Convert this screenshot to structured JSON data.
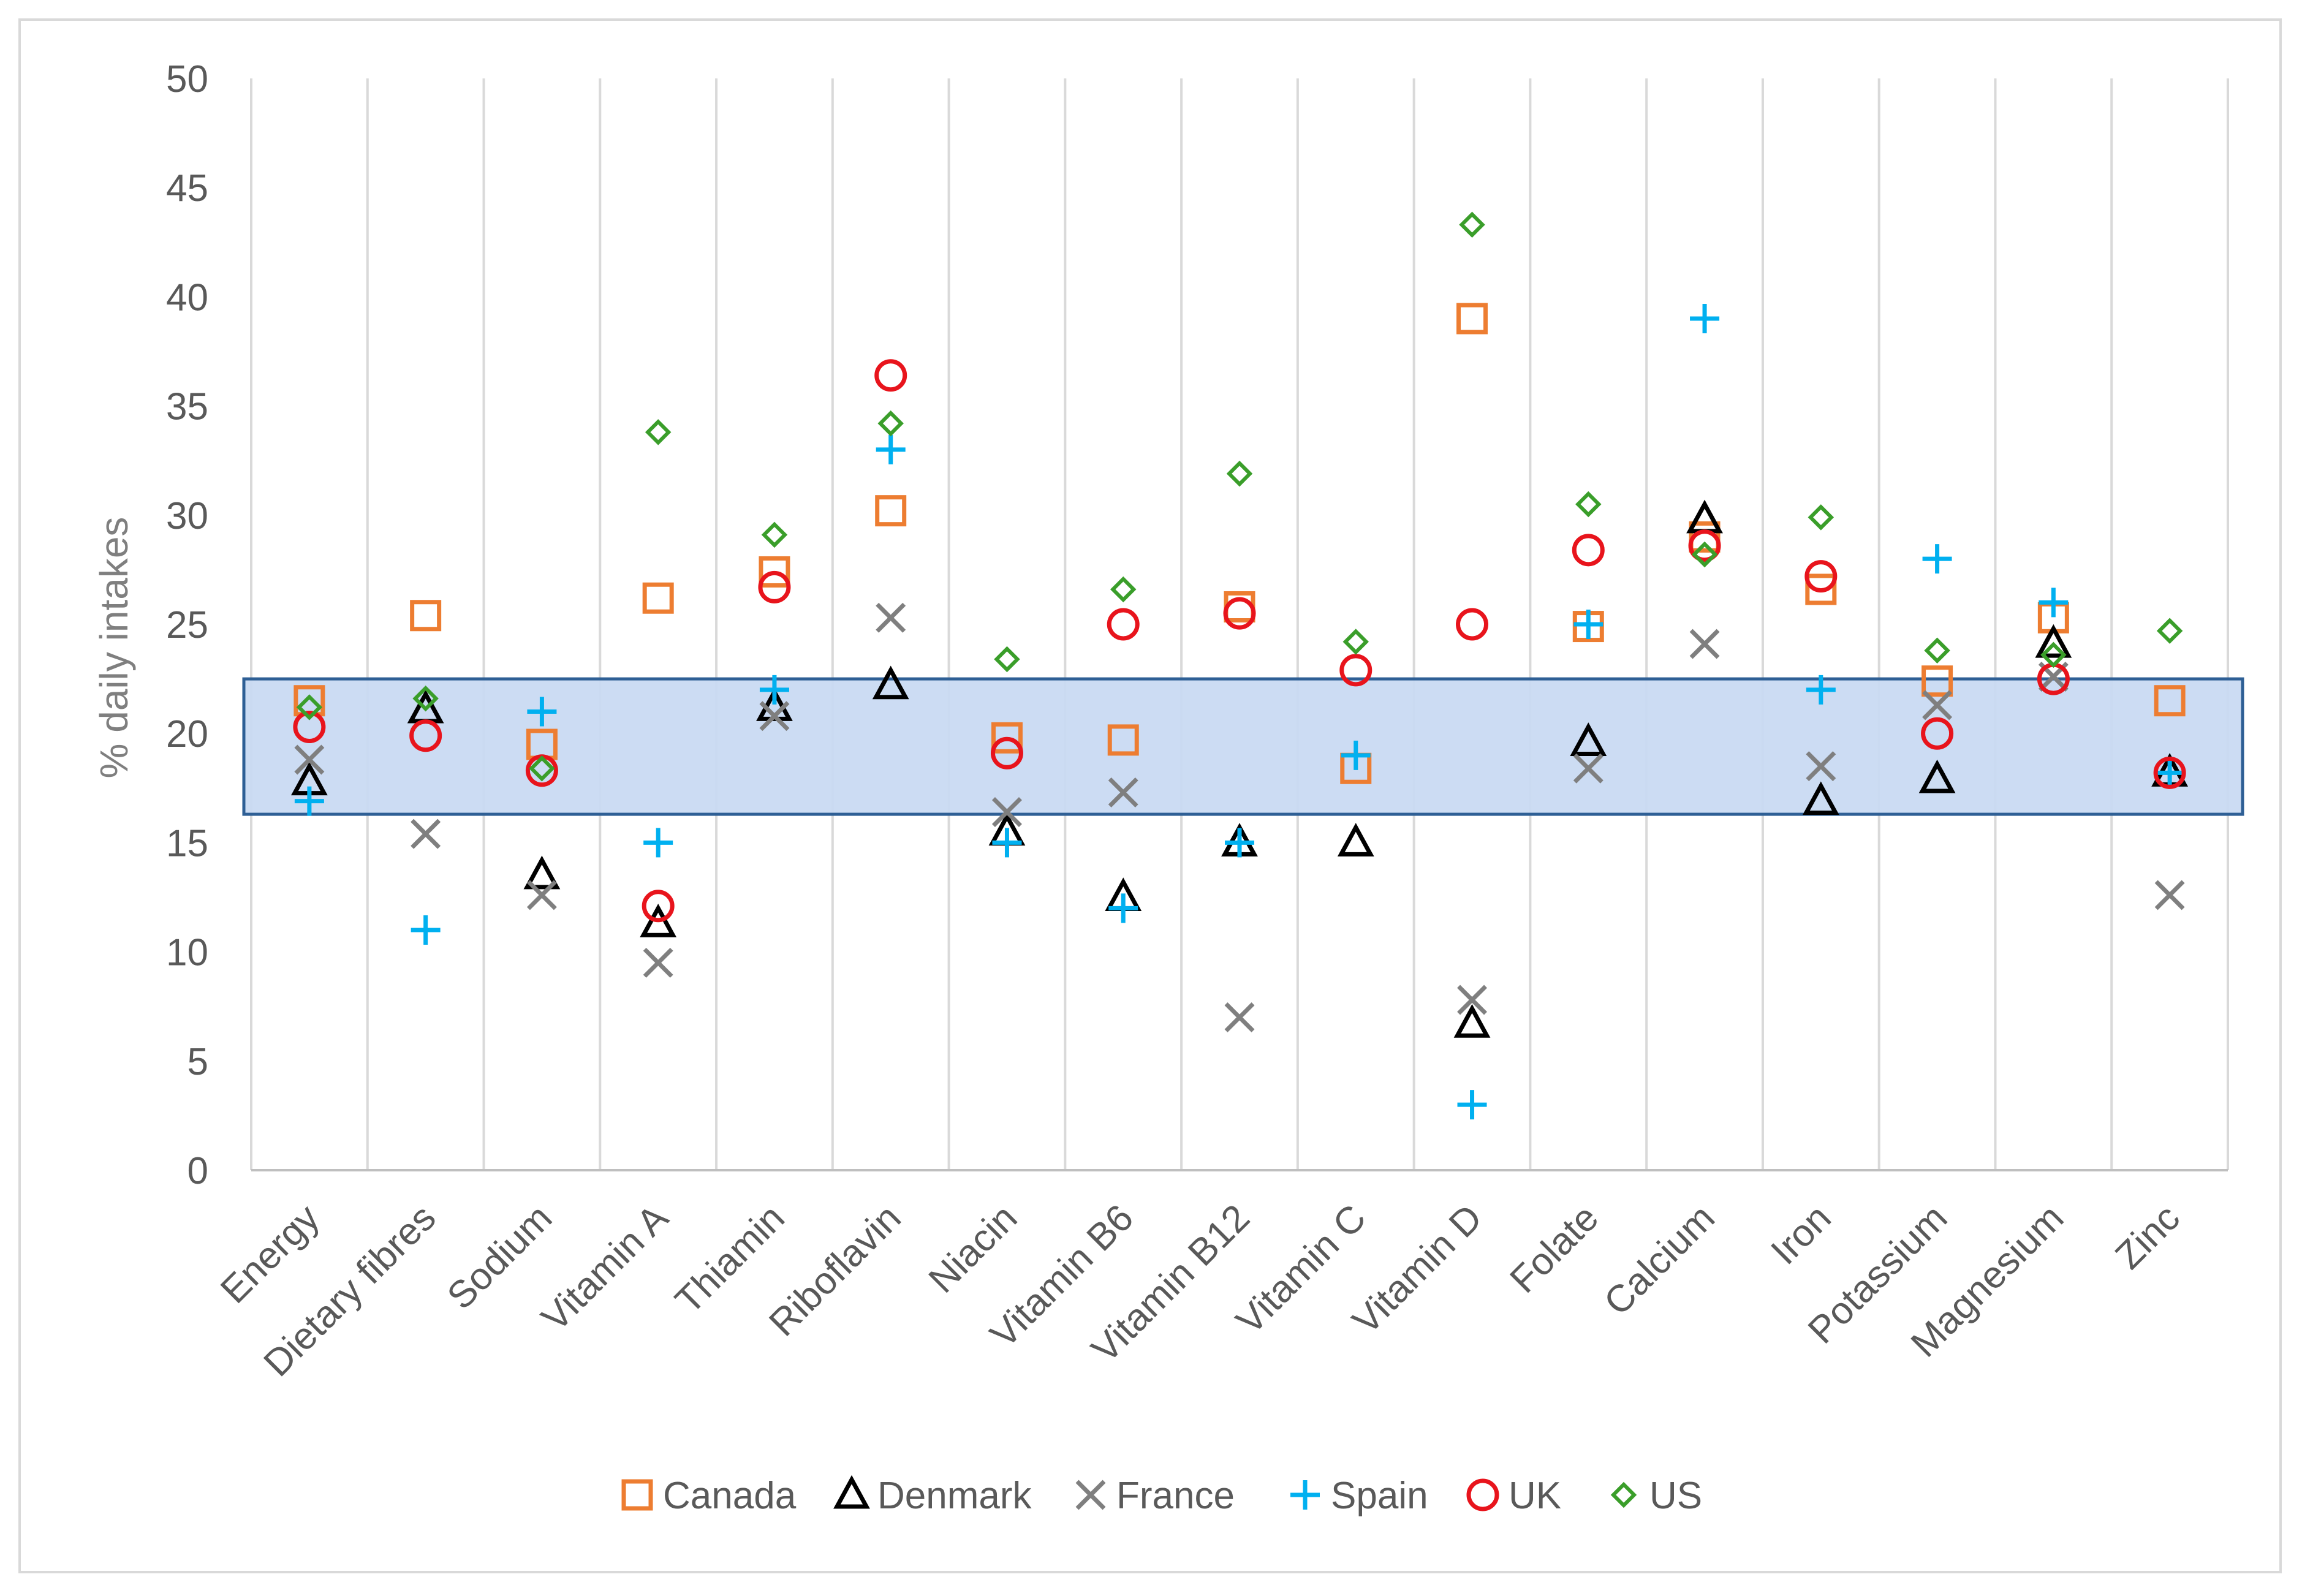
{
  "chart_data": {
    "type": "scatter",
    "title": "",
    "xlabel": "",
    "ylabel": "% daily intakes",
    "ylim": [
      0,
      50
    ],
    "yticks": [
      0,
      5,
      10,
      15,
      20,
      25,
      30,
      35,
      40,
      45,
      50
    ],
    "grid": "vertical",
    "legend_position": "bottom",
    "categories": [
      "Energy",
      "Dietary fibres",
      "Sodium",
      "Vitamin A",
      "Thiamin",
      "Riboflavin",
      "Niacin",
      "Vitamin B6",
      "Vitamin B12",
      "Vitamin C",
      "Vitamin D",
      "Folate",
      "Calcium",
      "Iron",
      "Potassium",
      "Magnesium",
      "Zinc"
    ],
    "highlight_band": {
      "y_from": 16.3,
      "y_to": 22.5,
      "color": "#c9daf2",
      "border": "#2e5f95"
    },
    "series": [
      {
        "name": "Canada",
        "marker": "square",
        "color": "#ed7d31",
        "values": [
          21.5,
          25.4,
          19.5,
          26.2,
          27.4,
          30.2,
          19.8,
          19.7,
          25.8,
          18.4,
          39.0,
          24.9,
          29.0,
          26.6,
          22.4,
          25.3,
          21.5
        ]
      },
      {
        "name": "Denmark",
        "marker": "triangle",
        "color": "#000000",
        "values": [
          17.8,
          21.1,
          13.5,
          11.3,
          21.2,
          22.2,
          15.5,
          12.5,
          15.0,
          15.0,
          6.7,
          19.6,
          29.8,
          16.9,
          17.9,
          24.1,
          18.2
        ]
      },
      {
        "name": "France",
        "marker": "x",
        "color": "#7f7f7f",
        "values": [
          18.8,
          15.4,
          12.6,
          9.5,
          20.8,
          25.3,
          16.4,
          17.3,
          7.0,
          null,
          7.8,
          18.4,
          24.1,
          18.5,
          21.3,
          22.6,
          12.6
        ]
      },
      {
        "name": "Spain",
        "marker": "plus",
        "color": "#00b0f0",
        "values": [
          16.9,
          11.0,
          21.0,
          15.0,
          22.0,
          33.0,
          15.0,
          12.0,
          15.0,
          19.0,
          3.0,
          25.0,
          39.0,
          22.0,
          28.0,
          26.0,
          18.2
        ]
      },
      {
        "name": "UK",
        "marker": "circle",
        "color": "#e8141c",
        "values": [
          20.3,
          19.9,
          18.3,
          12.1,
          26.7,
          36.4,
          19.1,
          25.0,
          25.5,
          22.9,
          25.0,
          28.4,
          28.6,
          27.2,
          20.0,
          22.5,
          18.2
        ]
      },
      {
        "name": "US",
        "marker": "diamond",
        "color": "#3a9e2a",
        "values": [
          21.2,
          21.6,
          18.4,
          33.8,
          29.1,
          34.2,
          23.4,
          26.6,
          31.9,
          24.2,
          43.3,
          30.5,
          28.2,
          29.9,
          23.8,
          23.6,
          24.7
        ]
      }
    ]
  }
}
